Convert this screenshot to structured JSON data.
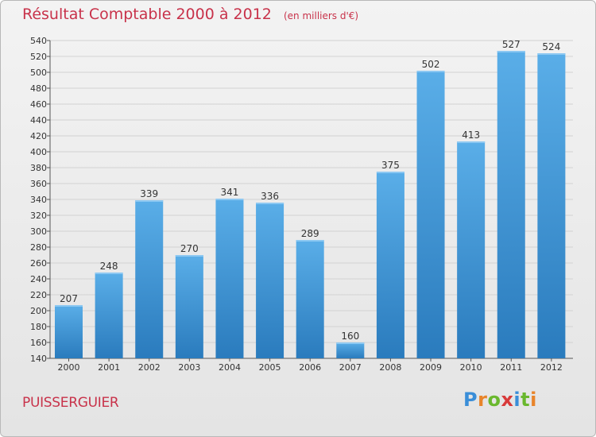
{
  "header": {
    "title": "Résultat Comptable 2000 à 2012",
    "subtitle": "(en milliers d'€)"
  },
  "footer": {
    "town": "PUISSERGUIER",
    "logo": {
      "letters": [
        "P",
        "r",
        "o",
        "x",
        "i",
        "t",
        "i"
      ],
      "colors": [
        "#3a8ed8",
        "#e8842a",
        "#6ab82e",
        "#d83a3a",
        "#3a8ed8",
        "#6ab82e",
        "#e8842a"
      ]
    }
  },
  "colors": {
    "accent": "#c8324a",
    "bar_top": "#5aaee8",
    "bar_bottom": "#2a7bbd"
  },
  "chart_data": {
    "type": "bar",
    "title": "Résultat Comptable 2000 à 2012",
    "subtitle": "(en milliers d'€)",
    "categories": [
      "2000",
      "2001",
      "2002",
      "2003",
      "2004",
      "2005",
      "2006",
      "2007",
      "2008",
      "2009",
      "2010",
      "2011",
      "2012"
    ],
    "values": [
      207,
      248,
      339,
      270,
      341,
      336,
      289,
      160,
      375,
      502,
      413,
      527,
      524
    ],
    "ylim": [
      140,
      540
    ],
    "ytick_step": 20,
    "grid": true
  }
}
